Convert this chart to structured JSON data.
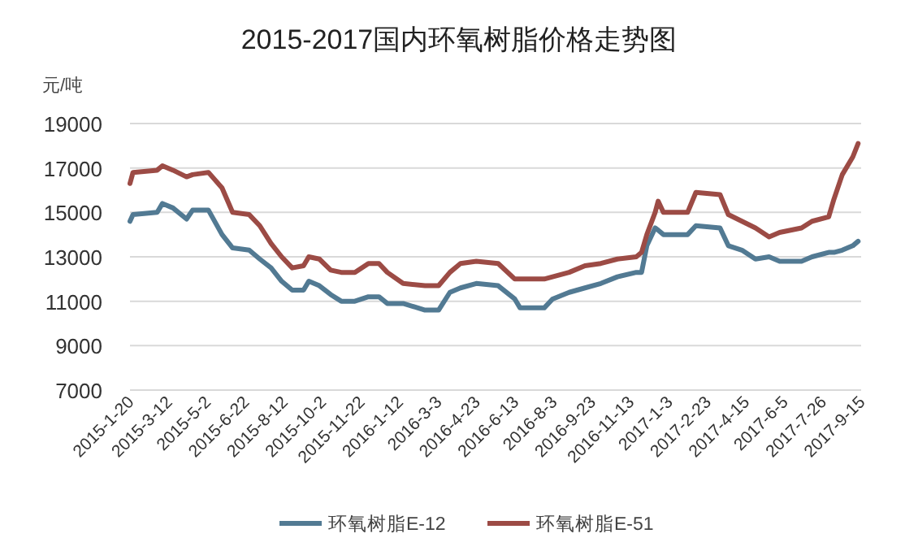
{
  "chart_data": {
    "type": "line",
    "title": "2015-2017国内环氧树脂价格走势图",
    "ylabel": "元/吨",
    "x": [
      "2015-01-20",
      "2015-01-24",
      "2015-02-25",
      "2015-03-04",
      "2015-03-18",
      "2015-04-05",
      "2015-04-13",
      "2015-05-04",
      "2015-05-22",
      "2015-06-05",
      "2015-06-27",
      "2015-07-11",
      "2015-07-26",
      "2015-08-09",
      "2015-08-23",
      "2015-09-07",
      "2015-09-14",
      "2015-09-28",
      "2015-10-13",
      "2015-10-27",
      "2015-11-14",
      "2015-12-02",
      "2015-12-16",
      "2015-12-27",
      "2016-01-17",
      "2016-02-15",
      "2016-03-04",
      "2016-03-19",
      "2016-04-02",
      "2016-04-23",
      "2016-05-22",
      "2016-06-13",
      "2016-06-20",
      "2016-07-22",
      "2016-08-02",
      "2016-08-24",
      "2016-09-14",
      "2016-10-05",
      "2016-10-27",
      "2016-11-21",
      "2016-11-28",
      "2016-12-05",
      "2016-12-16",
      "2016-12-20",
      "2016-12-27",
      "2017-01-28",
      "2017-02-08",
      "2017-03-12",
      "2017-03-23",
      "2017-04-10",
      "2017-04-28",
      "2017-05-16",
      "2017-05-30",
      "2017-06-28",
      "2017-07-12",
      "2017-08-03",
      "2017-08-10",
      "2017-08-21",
      "2017-09-04",
      "2017-09-11"
    ],
    "series": [
      {
        "name": "环氧树脂E-12",
        "color": "#527a93",
        "values": [
          14600,
          14900,
          15000,
          15400,
          15200,
          14700,
          15100,
          15100,
          14000,
          13400,
          13300,
          12900,
          12500,
          11900,
          11500,
          11500,
          11900,
          11700,
          11300,
          11000,
          11000,
          11200,
          11200,
          10900,
          10900,
          10600,
          10600,
          11400,
          11600,
          11800,
          11700,
          11100,
          10700,
          10700,
          11100,
          11400,
          11600,
          11800,
          12100,
          12300,
          12300,
          13500,
          14300,
          14200,
          14000,
          14000,
          14400,
          14300,
          13500,
          13300,
          12900,
          13000,
          12800,
          12800,
          13000,
          13200,
          13200,
          13300,
          13500,
          13700
        ]
      },
      {
        "name": "环氧树脂E-51",
        "color": "#9c4b45",
        "values": [
          16300,
          16800,
          16900,
          17100,
          16900,
          16600,
          16700,
          16800,
          16100,
          15000,
          14900,
          14400,
          13600,
          13000,
          12500,
          12600,
          13000,
          12900,
          12400,
          12300,
          12300,
          12700,
          12700,
          12300,
          11800,
          11700,
          11700,
          12300,
          12700,
          12800,
          12700,
          12000,
          12000,
          12000,
          12100,
          12300,
          12600,
          12700,
          12900,
          13000,
          13200,
          14000,
          15000,
          15500,
          15000,
          15000,
          15900,
          15800,
          14900,
          14600,
          14300,
          13900,
          14100,
          14300,
          14600,
          14800,
          15600,
          16700,
          17500,
          18100
        ]
      }
    ],
    "xlim": [
      "2015-01-20",
      "2017-09-15"
    ],
    "xticks": [
      {
        "value": "2015-01-20",
        "label": "2015-1-20"
      },
      {
        "value": "2015-03-12",
        "label": "2015-3-12"
      },
      {
        "value": "2015-05-02",
        "label": "2015-5-2"
      },
      {
        "value": "2015-06-22",
        "label": "2015-6-22"
      },
      {
        "value": "2015-08-12",
        "label": "2015-8-12"
      },
      {
        "value": "2015-10-02",
        "label": "2015-10-2"
      },
      {
        "value": "2015-11-22",
        "label": "2015-11-22"
      },
      {
        "value": "2016-01-12",
        "label": "2016-1-12"
      },
      {
        "value": "2016-03-03",
        "label": "2016-3-3"
      },
      {
        "value": "2016-04-23",
        "label": "2016-4-23"
      },
      {
        "value": "2016-06-13",
        "label": "2016-6-13"
      },
      {
        "value": "2016-08-03",
        "label": "2016-8-3"
      },
      {
        "value": "2016-09-23",
        "label": "2016-9-23"
      },
      {
        "value": "2016-11-13",
        "label": "2016-11-13"
      },
      {
        "value": "2017-01-03",
        "label": "2017-1-3"
      },
      {
        "value": "2017-02-23",
        "label": "2017-2-23"
      },
      {
        "value": "2017-04-15",
        "label": "2017-4-15"
      },
      {
        "value": "2017-06-05",
        "label": "2017-6-5"
      },
      {
        "value": "2017-07-26",
        "label": "2017-7-26"
      },
      {
        "value": "2017-09-15",
        "label": "2017-9-15"
      }
    ],
    "ylim": [
      7000,
      19000
    ],
    "yticks": [
      7000,
      9000,
      11000,
      13000,
      15000,
      17000,
      19000
    ],
    "grid": "y",
    "legend": "bottom",
    "line_style": "solid",
    "marker": "none"
  }
}
